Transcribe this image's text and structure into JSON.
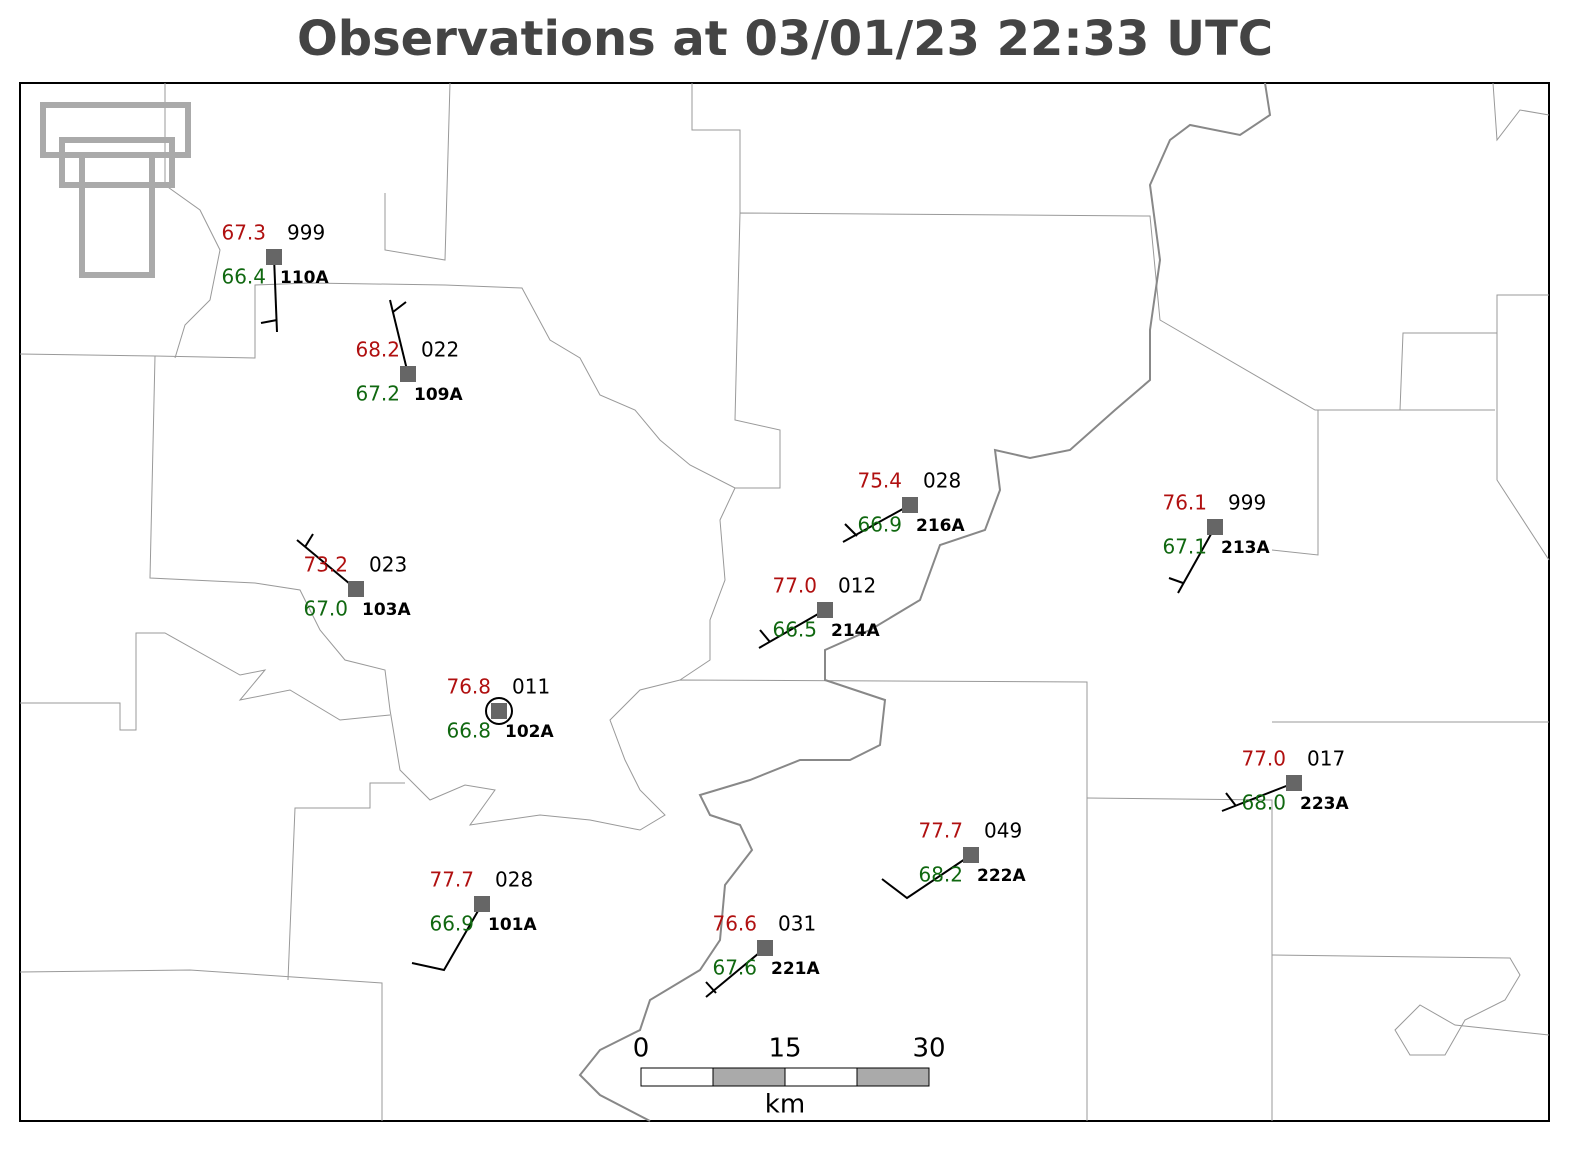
{
  "title": "Observations at 03/01/23 22:33 UTC",
  "stations": [
    {
      "id": "110A",
      "temperature": "67.3",
      "dewpoint": "66.4",
      "pressure": "999"
    },
    {
      "id": "109A",
      "temperature": "68.2",
      "dewpoint": "67.2",
      "pressure": "022"
    },
    {
      "id": "103A",
      "temperature": "73.2",
      "dewpoint": "67.0",
      "pressure": "023"
    },
    {
      "id": "102A",
      "temperature": "76.8",
      "dewpoint": "66.8",
      "pressure": "011"
    },
    {
      "id": "216A",
      "temperature": "75.4",
      "dewpoint": "66.9",
      "pressure": "028"
    },
    {
      "id": "214A",
      "temperature": "77.0",
      "dewpoint": "66.5",
      "pressure": "012"
    },
    {
      "id": "213A",
      "temperature": "76.1",
      "dewpoint": "67.1",
      "pressure": "999"
    },
    {
      "id": "223A",
      "temperature": "77.0",
      "dewpoint": "68.0",
      "pressure": "017"
    },
    {
      "id": "222A",
      "temperature": "77.7",
      "dewpoint": "68.2",
      "pressure": "049"
    },
    {
      "id": "101A",
      "temperature": "77.7",
      "dewpoint": "66.9",
      "pressure": "028"
    },
    {
      "id": "221A",
      "temperature": "76.6",
      "dewpoint": "67.6",
      "pressure": "031"
    }
  ],
  "scale_bar": {
    "labels": [
      "0",
      "15",
      "30"
    ],
    "unit": "km"
  }
}
